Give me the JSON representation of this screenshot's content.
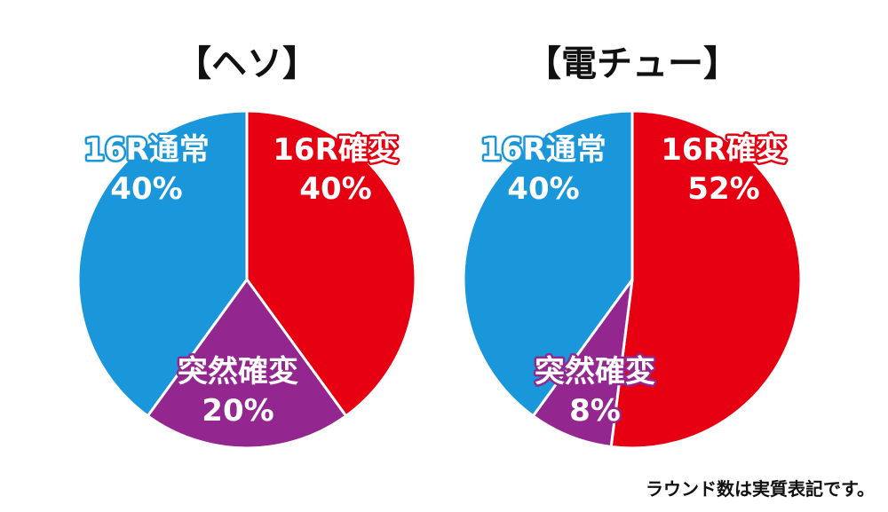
{
  "colors": {
    "normal_16r": "#1a96db",
    "kakuhen_16r": "#e60012",
    "totsuzen": "#93278f",
    "title": "#111111"
  },
  "footnote": "ラウンド数は実質表記です。",
  "chart_data": [
    {
      "type": "pie",
      "title": "【ヘソ】",
      "slices": [
        {
          "label": "16R確変",
          "value": 40,
          "value_text": "40%",
          "color": "#e60012"
        },
        {
          "label": "突然確変",
          "value": 20,
          "value_text": "20%",
          "color": "#93278f"
        },
        {
          "label": "16R通常",
          "value": 40,
          "value_text": "40%",
          "color": "#1a96db"
        }
      ]
    },
    {
      "type": "pie",
      "title": "【電チュー】",
      "slices": [
        {
          "label": "16R確変",
          "value": 52,
          "value_text": "52%",
          "color": "#e60012"
        },
        {
          "label": "突然確変",
          "value": 8,
          "value_text": "8%",
          "color": "#93278f"
        },
        {
          "label": "16R通常",
          "value": 40,
          "value_text": "40%",
          "color": "#1a96db"
        }
      ]
    }
  ]
}
